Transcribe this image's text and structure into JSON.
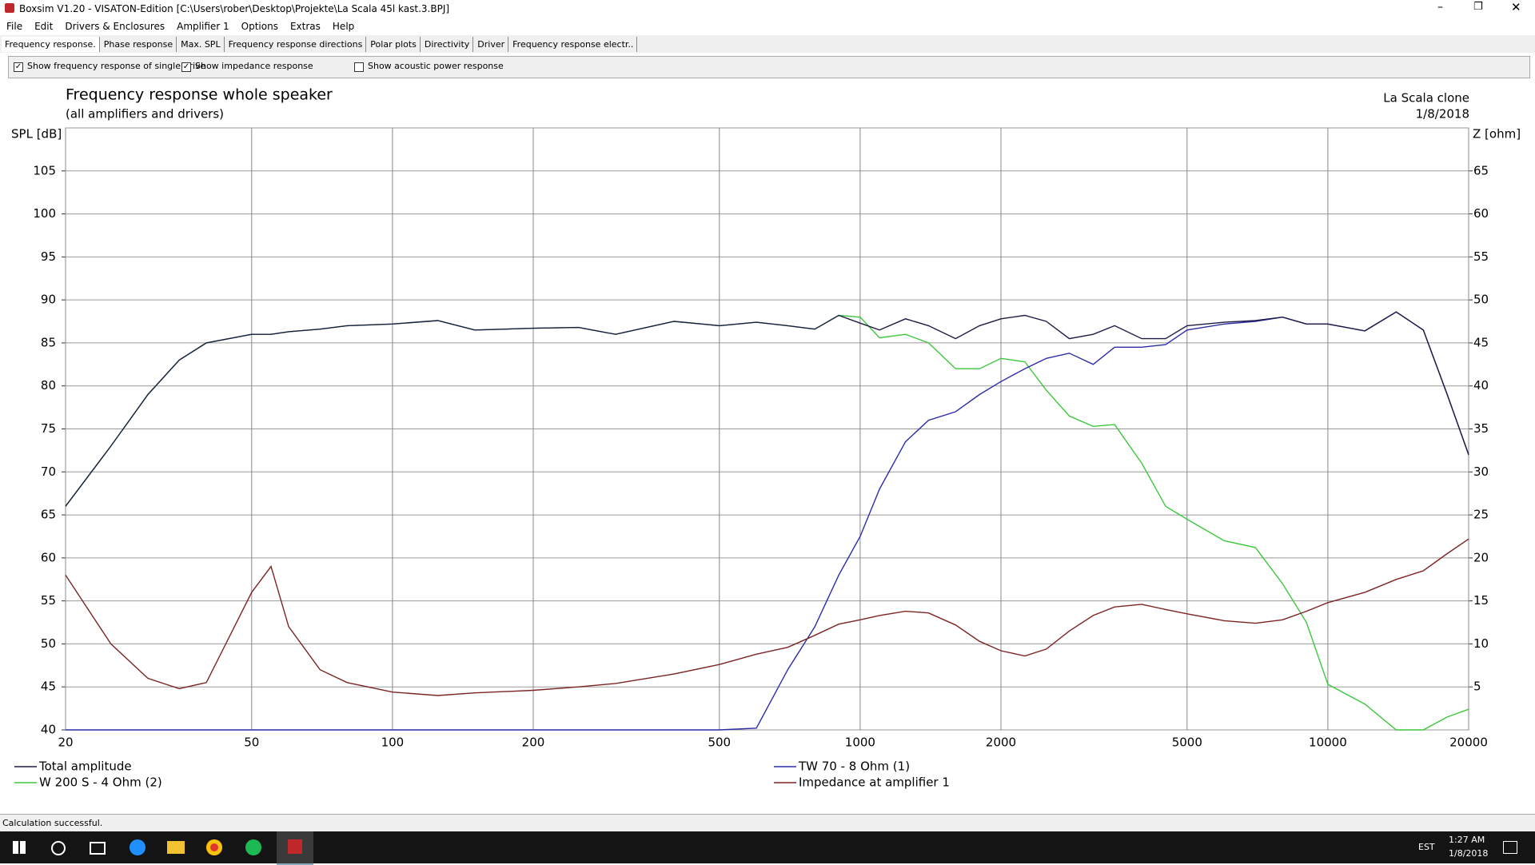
{
  "window": {
    "title": "Boxsim V1.20 - VISATON-Edition [C:\\Users\\rober\\Desktop\\Projekte\\La Scala 45l kast.3.BPJ]"
  },
  "menu": [
    "File",
    "Edit",
    "Drivers & Enclosures",
    "Amplifier 1",
    "Options",
    "Extras",
    "Help"
  ],
  "tabs": [
    "Frequency response.",
    "Phase response",
    "Max. SPL",
    "Frequency response directions",
    "Polar plots",
    "Directivity",
    "Driver",
    "Frequency response electr.."
  ],
  "options": [
    {
      "label": "Show frequency response of single drive",
      "checked": true
    },
    {
      "label": "Show impedance response",
      "checked": true
    },
    {
      "label": "Show acoustic power response",
      "checked": false
    }
  ],
  "status": "Calculation successful.",
  "taskbar": {
    "time": "1:27 AM",
    "date": "1/8/2018",
    "language": "EST"
  },
  "chart_data": {
    "type": "line",
    "title": "Frequency response whole speaker",
    "subtitle": "(all amplifiers and drivers)",
    "annotations": [
      "La Scala clone",
      "1/8/2018"
    ],
    "y_label": "SPL [dB]",
    "y2_label": "Z [ohm]",
    "log_x": true,
    "grid": true,
    "x": [
      20,
      25,
      30,
      35,
      40,
      50,
      55,
      60,
      70,
      80,
      100,
      125,
      150,
      200,
      250,
      300,
      400,
      500,
      600,
      700,
      800,
      900,
      1000,
      1100,
      1250,
      1400,
      1600,
      1800,
      2000,
      2250,
      2500,
      2800,
      3150,
      3500,
      4000,
      4500,
      5000,
      6000,
      7000,
      8000,
      9000,
      10000,
      12000,
      14000,
      16000,
      18000,
      20000
    ],
    "xlim": [
      20,
      20000
    ],
    "xticks": [
      20,
      50,
      100,
      200,
      500,
      1000,
      2000,
      5000,
      10000,
      20000
    ],
    "ylim": [
      40,
      110
    ],
    "yticks": [
      40,
      45,
      50,
      55,
      60,
      65,
      70,
      75,
      80,
      85,
      90,
      95,
      100,
      105
    ],
    "y2lim": [
      0,
      70
    ],
    "y2ticks": [
      5,
      10,
      15,
      20,
      25,
      30,
      35,
      40,
      45,
      50,
      55,
      60,
      65
    ],
    "series": [
      {
        "name": "Total amplitude",
        "color": "#1c1c44",
        "values": [
          66,
          73,
          79,
          83,
          85,
          86,
          86,
          86.3,
          86.6,
          87,
          87.2,
          87.6,
          86.5,
          86.7,
          86.8,
          86,
          87.5,
          87,
          87.4,
          87,
          86.6,
          88.2,
          87.3,
          86.5,
          87.8,
          87,
          85.5,
          87,
          87.8,
          88.2,
          87.5,
          85.5,
          86,
          87,
          85.5,
          85.5,
          87,
          87.4,
          87.6,
          88,
          87.2,
          87.2,
          86.4,
          88.6,
          86.5,
          79,
          72
        ]
      },
      {
        "name": "W 200 S - 4 Ohm (2)",
        "color": "#3cc83c",
        "values": [
          66,
          73,
          79,
          83,
          85,
          86,
          86,
          86.3,
          86.6,
          87,
          87.2,
          87.6,
          86.5,
          86.7,
          86.8,
          86,
          87.5,
          87,
          87.4,
          87,
          86.6,
          88.2,
          88,
          85.6,
          86,
          85,
          82,
          82,
          83.2,
          82.8,
          79.5,
          76.5,
          75.3,
          75.5,
          71,
          66,
          64.5,
          62,
          61.2,
          57,
          52.5,
          45.3,
          43,
          40,
          40,
          41.5,
          42.4
        ]
      },
      {
        "name": "TW 70 - 8 Ohm (1)",
        "color": "#2c2ca8",
        "values": [
          40,
          40,
          40,
          40,
          40,
          40,
          40,
          40,
          40,
          40,
          40,
          40,
          40,
          40,
          40,
          40,
          40,
          40,
          40.2,
          47,
          52,
          58,
          62.5,
          68,
          73.5,
          76,
          77,
          79,
          80.5,
          82,
          83.2,
          83.8,
          82.5,
          84.5,
          84.5,
          84.8,
          86.5,
          87.2,
          87.5,
          88,
          87.2,
          87.2,
          86.4,
          88.6,
          86.5,
          79,
          72
        ]
      },
      {
        "name": "Impedance at amplifier 1",
        "color": "#7c2424",
        "axis": "y2",
        "values": [
          18,
          10,
          6,
          4.8,
          5.5,
          16,
          19,
          12,
          7,
          5.5,
          4.4,
          4,
          4.3,
          4.6,
          5,
          5.4,
          6.5,
          7.6,
          8.8,
          9.6,
          11,
          12.3,
          12.8,
          13.3,
          13.8,
          13.6,
          12.2,
          10.3,
          9.2,
          8.6,
          9.4,
          11.5,
          13.3,
          14.3,
          14.6,
          14,
          13.5,
          12.7,
          12.4,
          12.8,
          13.8,
          14.8,
          16,
          17.5,
          18.5,
          20.5,
          22.2
        ]
      }
    ]
  }
}
